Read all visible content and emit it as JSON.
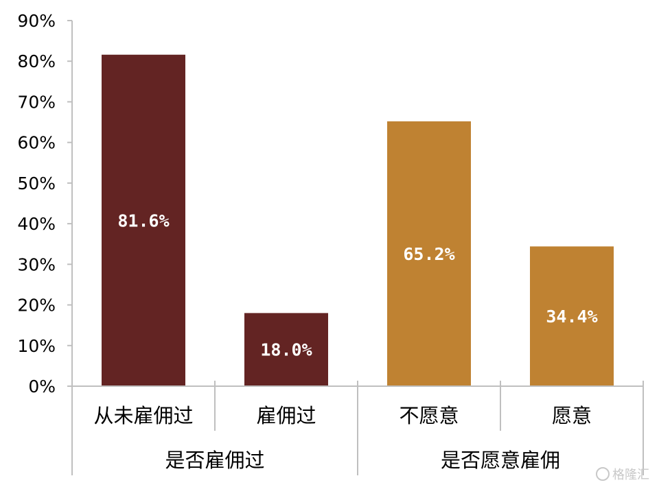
{
  "chart_data": {
    "type": "bar",
    "categories": [
      "从未雇佣过",
      "雇佣过",
      "不愿意",
      "愿意"
    ],
    "values": [
      81.6,
      18.0,
      65.2,
      34.4
    ],
    "data_labels": [
      "81.6%",
      "18.0%",
      "65.2%",
      "34.4%"
    ],
    "groups": [
      {
        "label": "是否雇佣过",
        "categories": [
          "从未雇佣过",
          "雇佣过"
        ],
        "color": "#632423"
      },
      {
        "label": "是否愿意雇佣",
        "categories": [
          "不愿意",
          "愿意"
        ],
        "color": "#bf8232"
      }
    ],
    "bar_colors": [
      "#632423",
      "#632423",
      "#bf8232",
      "#bf8232"
    ],
    "y_ticks": [
      "0%",
      "10%",
      "20%",
      "30%",
      "40%",
      "50%",
      "60%",
      "70%",
      "80%",
      "90%"
    ],
    "ylim": [
      0,
      90
    ],
    "grid": false,
    "legend": "none"
  },
  "watermark": {
    "text": "格隆汇"
  }
}
